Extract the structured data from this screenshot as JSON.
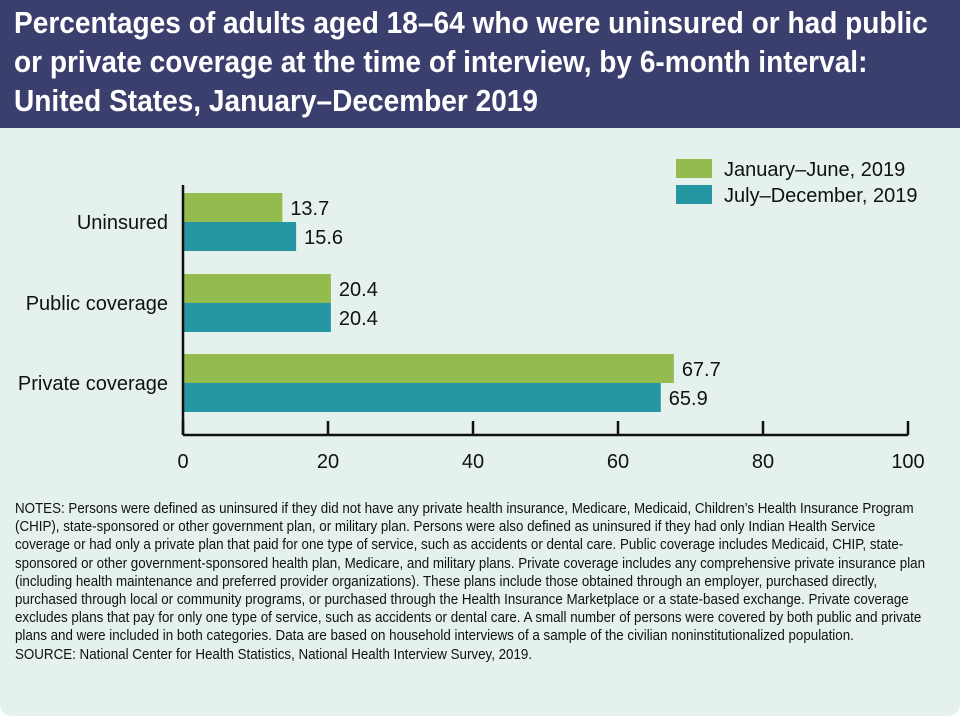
{
  "title": "Percentages of adults aged 18–64 who were uninsured or had public or private coverage at the time of interview, by 6-month interval: United States, January–December 2019",
  "notes": "NOTES: Persons were defined as uninsured if they did not have any private health insurance, Medicare, Medicaid, Children’s Health Insurance Program (CHIP), state-sponsored or other government plan, or military plan. Persons were also defined as uninsured if they had only Indian Health Service coverage or had only a private plan that paid for one type of service, such as accidents or dental care. Public coverage includes Medicaid, CHIP, state-sponsored or other government-sponsored health plan, Medicare, and military plans. Private coverage includes any comprehensive private insurance plan (including health maintenance and preferred provider organizations). These plans include those obtained through an employer, purchased directly, purchased through local or community programs, or purchased through the Health Insurance Marketplace or a state-based exchange. Private coverage excludes plans that pay for only one type of service, such as accidents or dental care. A small number of persons were covered by both public and private plans and were included in both categories. Data are based on household interviews of a sample of the civilian noninstitutionalized population.",
  "source": "SOURCE: National Center for Health Statistics, National Health Interview Survey, 2019.",
  "chart_data": {
    "type": "bar",
    "orientation": "horizontal",
    "categories": [
      "Uninsured",
      "Public coverage",
      "Private coverage"
    ],
    "series": [
      {
        "name": "January–June, 2019",
        "values": [
          13.7,
          20.4,
          67.7
        ],
        "color": "#93bb4e"
      },
      {
        "name": "July–December, 2019",
        "values": [
          15.6,
          20.4,
          65.9
        ],
        "color": "#2497a3"
      }
    ],
    "xlim": [
      0,
      100
    ],
    "xticks": [
      0,
      20,
      40,
      60,
      80,
      100
    ],
    "xlabel": "",
    "ylabel": "",
    "grid": false,
    "legend_position": "top-right",
    "data_labels": true
  },
  "colors": {
    "title_bg": "#3b3f6e",
    "panel_bg": "#e4f1ec"
  }
}
